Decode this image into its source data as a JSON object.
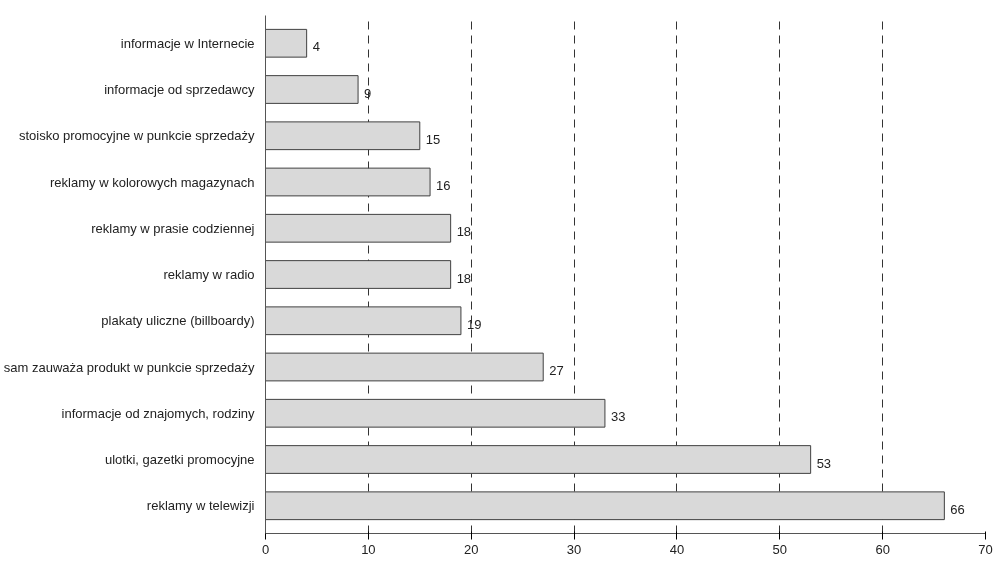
{
  "chart_data": {
    "type": "bar",
    "orientation": "horizontal",
    "categories": [
      "informacje w Internecie",
      "informacje od sprzedawcy",
      "stoisko promocyjne w punkcie sprzedaży",
      "reklamy w kolorowych magazynach",
      "reklamy w prasie codziennej",
      "reklamy w radio",
      "plakaty uliczne (billboardy)",
      "sam zauważa produkt w punkcie sprzedaży",
      "informacje od znajomych, rodziny",
      "ulotki, gazetki promocyjne",
      "reklamy w telewizji"
    ],
    "values": [
      4,
      9,
      15,
      16,
      18,
      18,
      19,
      27,
      33,
      53,
      66
    ],
    "color": "#d9d9d9",
    "xlim": [
      0,
      70
    ],
    "xticks": [
      0,
      10,
      20,
      30,
      40,
      50,
      60,
      70
    ],
    "grid": "x",
    "data_labels": true
  }
}
